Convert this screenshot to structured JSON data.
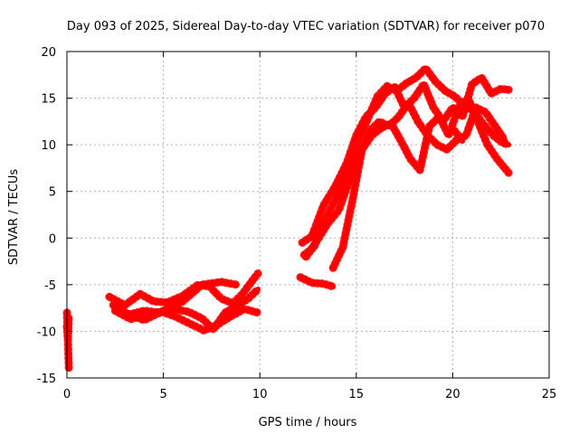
{
  "chart_data": {
    "type": "line",
    "title": "Day 093 of 2025, Sidereal Day-to-day VTEC variation (SDTVAR) for receiver p070",
    "xlabel": "GPS time / hours",
    "ylabel": "SDTVAR / TECUs",
    "xlim": [
      0,
      25
    ],
    "ylim": [
      -15,
      20
    ],
    "x_ticks": [
      0,
      5,
      10,
      15,
      20,
      25
    ],
    "y_ticks": [
      -15,
      -10,
      -5,
      0,
      5,
      10,
      15,
      20
    ],
    "grid": true,
    "legend": "none",
    "color": "#ff0000",
    "series": [
      {
        "x": [
          0,
          0.05,
          0.1
        ],
        "y": [
          -8.0,
          -11.0,
          -14.0
        ]
      },
      {
        "x": [
          0,
          0.05,
          0.1
        ],
        "y": [
          -9.5,
          -10.8,
          -8.5
        ]
      },
      {
        "x": [
          2.2,
          3.0,
          3.8,
          4.5,
          5.2,
          6.0,
          6.8,
          7.4,
          8.0,
          8.6,
          9.1,
          9.6,
          9.9
        ],
        "y": [
          -6.3,
          -7.2,
          -6.0,
          -6.8,
          -6.9,
          -6.2,
          -5.0,
          -5.2,
          -6.5,
          -7.0,
          -6.0,
          -4.6,
          -3.8
        ]
      },
      {
        "x": [
          2.4,
          3.2,
          4.0,
          4.8,
          5.5,
          6.3,
          7.0,
          7.6,
          8.2,
          8.8,
          9.4,
          9.9
        ],
        "y": [
          -7.2,
          -8.2,
          -7.8,
          -8.0,
          -7.6,
          -7.9,
          -8.6,
          -9.8,
          -8.0,
          -7.3,
          -6.5,
          -5.5
        ]
      },
      {
        "x": [
          2.5,
          3.3,
          4.1,
          4.9,
          5.6,
          6.4,
          7.1,
          7.8,
          8.5,
          9.2,
          9.9
        ],
        "y": [
          -7.8,
          -8.7,
          -8.2,
          -7.9,
          -8.4,
          -9.2,
          -9.9,
          -9.3,
          -8.4,
          -7.6,
          -8.0
        ]
      },
      {
        "x": [
          3.0,
          4.0,
          5.0,
          6.0,
          7.0,
          8.0,
          8.8
        ],
        "y": [
          -8.0,
          -8.8,
          -7.8,
          -6.8,
          -5.0,
          -4.7,
          -5.0
        ]
      },
      {
        "x": [
          12.2,
          12.7,
          13.3,
          13.9,
          14.5,
          15.0,
          15.5,
          16.0,
          16.5,
          17.0,
          17.5,
          18.0,
          18.5,
          19.0,
          19.5,
          20.0,
          20.5,
          21.0,
          21.5,
          22.0,
          22.5,
          22.9
        ],
        "y": [
          -0.5,
          0.2,
          3.5,
          5.5,
          8.0,
          11.0,
          13.0,
          14.0,
          15.5,
          16.2,
          14.0,
          15.0,
          16.5,
          14.0,
          12.5,
          14.0,
          13.0,
          16.5,
          17.2,
          15.5,
          16.0,
          15.9
        ]
      },
      {
        "x": [
          12.3,
          12.8,
          13.4,
          14.0,
          14.6,
          15.1,
          15.6,
          16.1,
          16.6,
          17.1,
          17.6,
          18.1,
          18.6,
          19.1,
          19.6,
          20.1,
          20.6,
          21.1,
          21.6,
          22.1,
          22.6,
          22.9
        ],
        "y": [
          -1.8,
          -1.0,
          2.0,
          4.5,
          7.5,
          10.5,
          12.8,
          15.2,
          16.3,
          15.8,
          16.6,
          17.2,
          18.2,
          16.8,
          15.8,
          15.2,
          14.2,
          13.6,
          12.2,
          11.0,
          10.2,
          10.0
        ]
      },
      {
        "x": [
          12.4,
          12.9,
          13.5,
          14.1,
          14.7,
          15.2,
          15.7,
          16.2,
          16.7,
          17.2,
          17.7,
          18.2,
          18.7,
          19.2,
          19.7,
          20.2,
          20.7,
          21.2,
          21.7,
          22.2,
          22.7
        ],
        "y": [
          -2.0,
          -0.5,
          1.5,
          3.0,
          6.5,
          9.0,
          11.5,
          12.5,
          12.0,
          13.0,
          14.5,
          12.5,
          11.0,
          10.0,
          9.5,
          10.5,
          11.0,
          14.0,
          13.5,
          12.0,
          10.5
        ]
      },
      {
        "x": [
          13.8,
          14.3,
          14.8,
          15.3,
          15.8,
          16.3,
          16.8,
          17.3,
          17.8,
          18.3,
          18.8,
          19.3,
          19.8,
          20.3,
          20.8,
          21.3,
          21.8,
          22.3,
          22.9
        ],
        "y": [
          -3.2,
          -1.0,
          4.0,
          9.5,
          11.0,
          11.8,
          12.3,
          10.5,
          8.5,
          7.3,
          12.0,
          13.0,
          11.0,
          14.0,
          15.0,
          12.5,
          10.0,
          8.5,
          7.0
        ]
      },
      {
        "x": [
          12.1,
          12.7,
          13.3,
          13.8
        ],
        "y": [
          -4.2,
          -4.8,
          -4.9,
          -5.2
        ]
      },
      {
        "x": [
          20.1,
          20.5
        ],
        "y": [
          11.5,
          10.4
        ]
      }
    ]
  }
}
